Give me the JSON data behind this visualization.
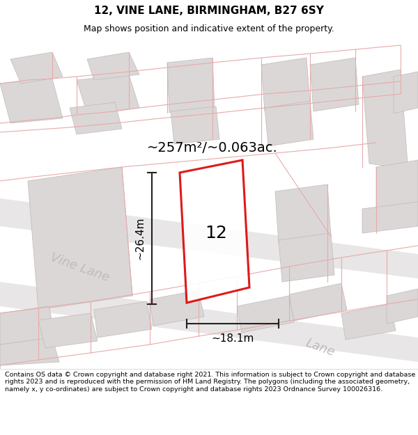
{
  "title": "12, VINE LANE, BIRMINGHAM, B27 6SY",
  "subtitle": "Map shows position and indicative extent of the property.",
  "area_label": "~257m²/~0.063ac.",
  "property_number": "12",
  "dim_width": "~18.1m",
  "dim_height": "~26.4m",
  "street_label1": "Vine Lane",
  "street_label2": "Lane",
  "footer": "Contains OS data © Crown copyright and database right 2021. This information is subject to Crown copyright and database rights 2023 and is reproduced with the permission of HM Land Registry. The polygons (including the associated geometry, namely x, y co-ordinates) are subject to Crown copyright and database rights 2023 Ordnance Survey 100026316.",
  "map_bg": "#eeecec",
  "building_fill": "#dbd7d7",
  "building_edge": "#c0baba",
  "road_fill": "#e8e6e6",
  "property_color": "#dd0000",
  "dim_color": "#222222",
  "street_color": "#c0bcbc",
  "pink": "#e8aaaa",
  "title_size": 11,
  "subtitle_size": 9,
  "footer_size": 6.8,
  "area_label_size": 14,
  "property_num_size": 18,
  "dim_label_size": 11,
  "street_label_size": 13
}
